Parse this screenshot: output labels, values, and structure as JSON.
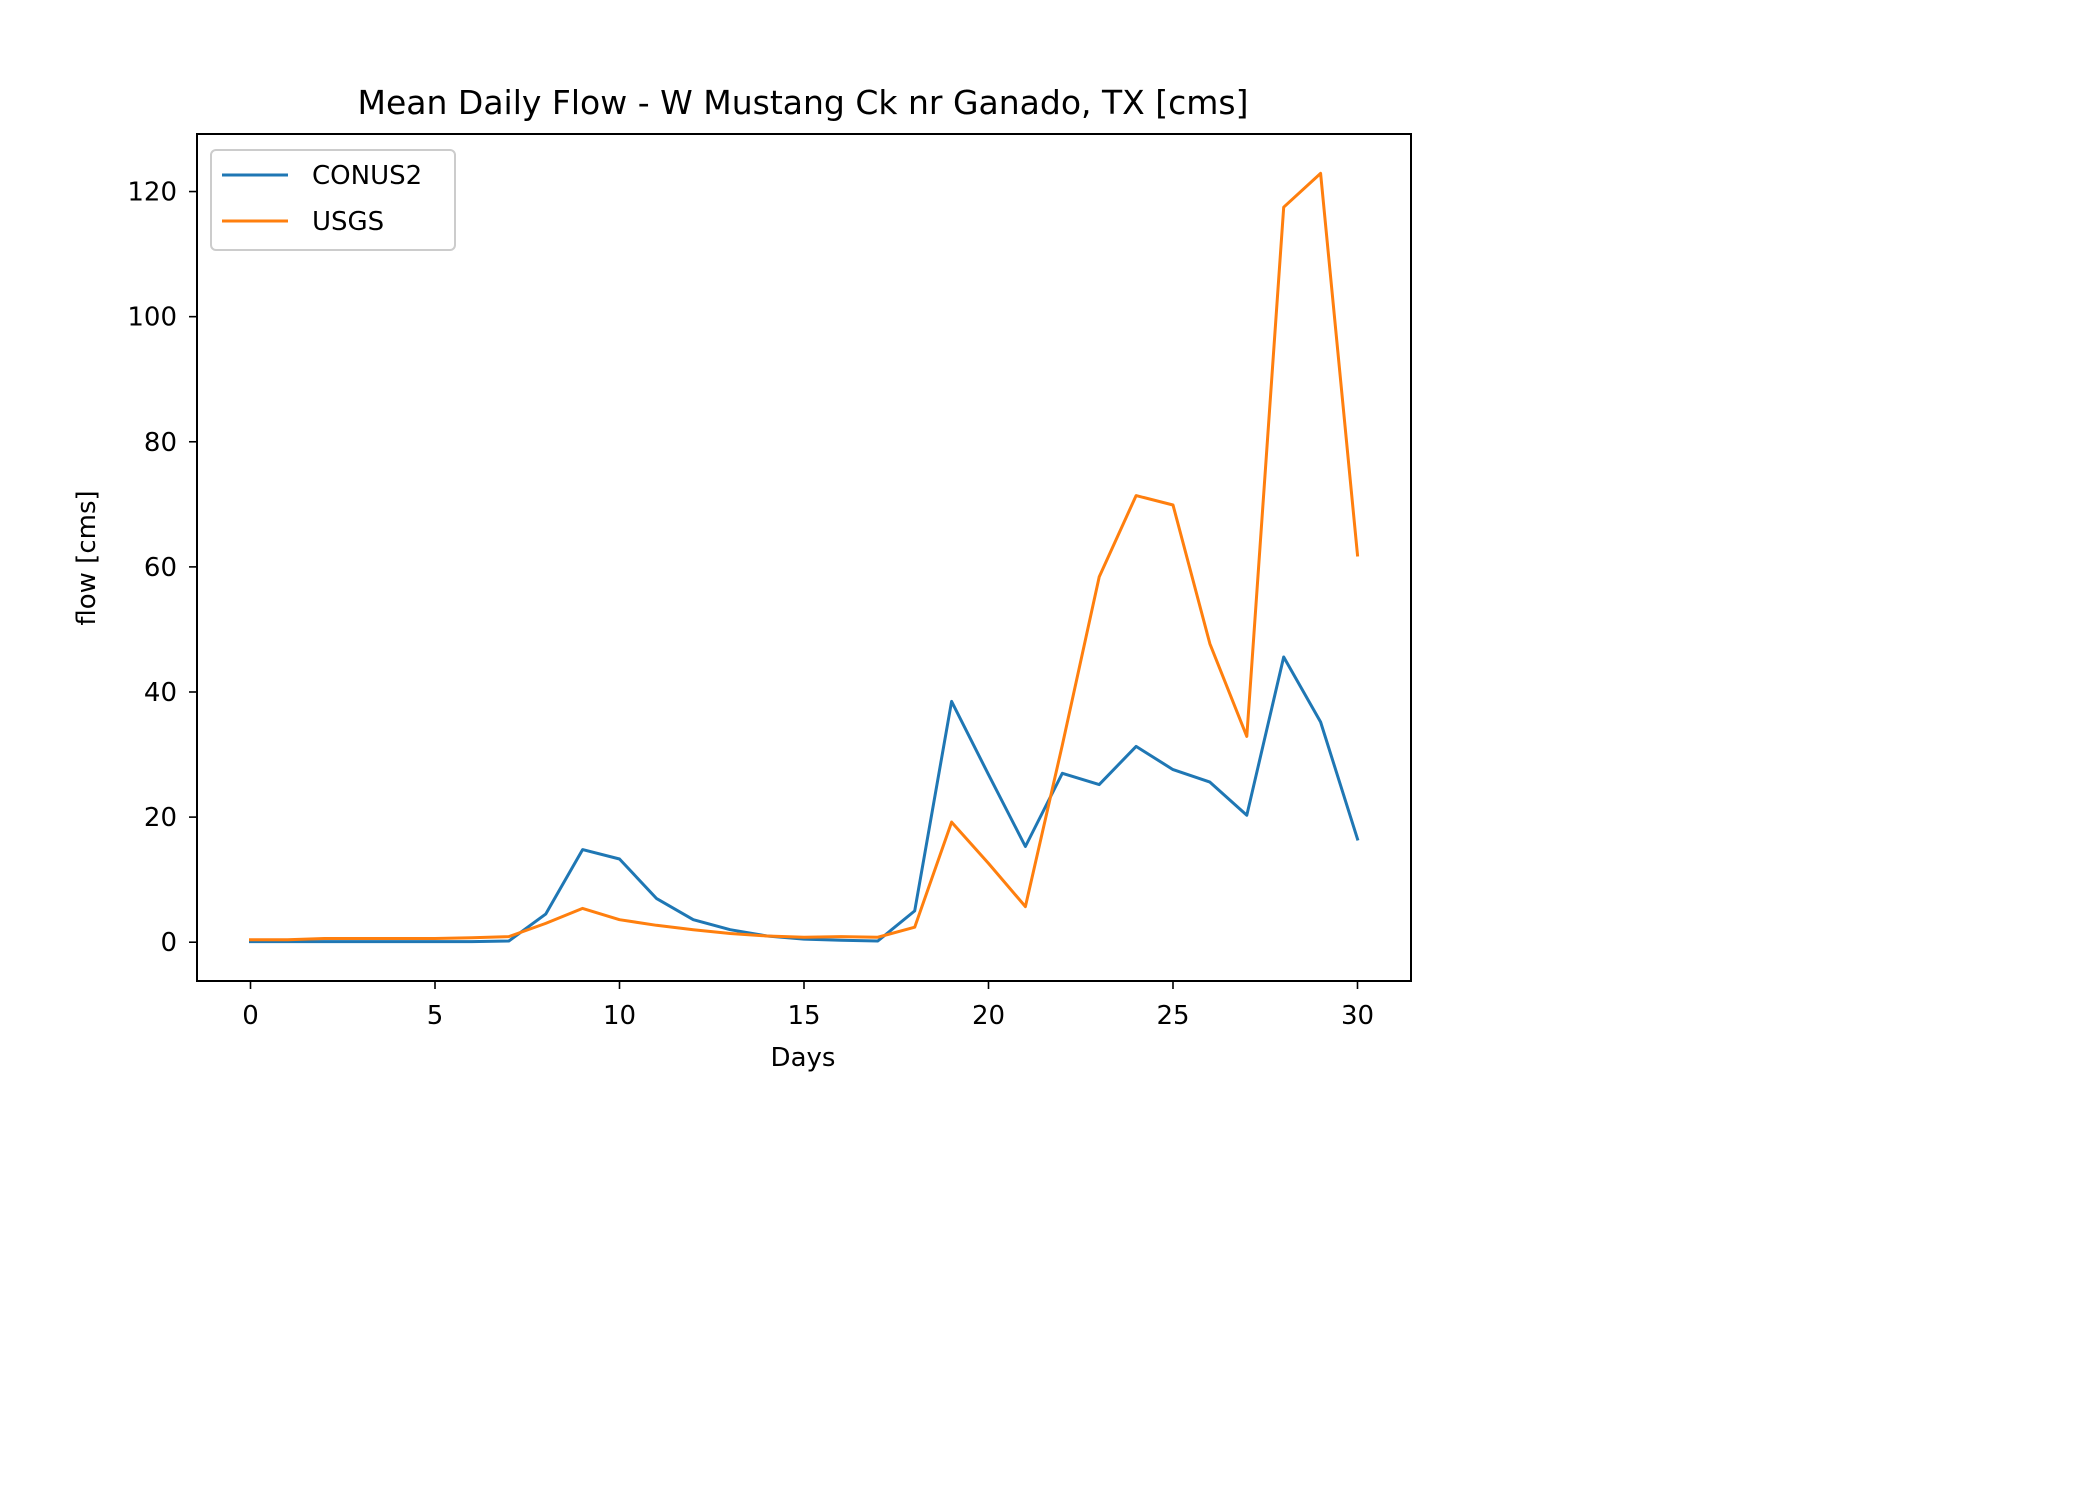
{
  "chart_data": {
    "type": "line",
    "title": "Mean Daily Flow - W Mustang Ck nr Ganado, TX [cms]",
    "xlabel": "Days",
    "ylabel": "flow [cms]",
    "xlim": [
      -1.45,
      31.45
    ],
    "ylim": [
      -6.2,
      129.2
    ],
    "xticks": [
      0,
      5,
      10,
      15,
      20,
      25,
      30
    ],
    "yticks": [
      0,
      20,
      40,
      60,
      80,
      100,
      120
    ],
    "grid": false,
    "legend_position": "upper-left",
    "x": [
      0,
      1,
      2,
      3,
      4,
      5,
      6,
      7,
      8,
      9,
      10,
      11,
      12,
      13,
      14,
      15,
      16,
      17,
      18,
      19,
      20,
      21,
      22,
      23,
      24,
      25,
      26,
      27,
      28,
      29,
      30
    ],
    "series": [
      {
        "name": "CONUS2",
        "color": "#1f77b4",
        "values": [
          0.1,
          0.1,
          0.1,
          0.1,
          0.1,
          0.1,
          0.1,
          0.2,
          4.5,
          14.8,
          13.3,
          7.0,
          3.6,
          2.0,
          1.0,
          0.5,
          0.3,
          0.2,
          5.0,
          38.5,
          26.8,
          15.3,
          27.0,
          25.2,
          31.3,
          27.6,
          25.6,
          20.3,
          45.6,
          35.2,
          16.5
        ]
      },
      {
        "name": "USGS",
        "color": "#ff7f0e",
        "values": [
          0.4,
          0.4,
          0.6,
          0.6,
          0.6,
          0.6,
          0.7,
          0.9,
          3.0,
          5.4,
          3.6,
          2.7,
          2.0,
          1.4,
          1.0,
          0.8,
          0.9,
          0.8,
          2.4,
          19.2,
          12.6,
          5.7,
          31.5,
          58.4,
          71.4,
          69.9,
          47.7,
          32.9,
          117.5,
          122.9,
          61.9
        ]
      }
    ]
  }
}
